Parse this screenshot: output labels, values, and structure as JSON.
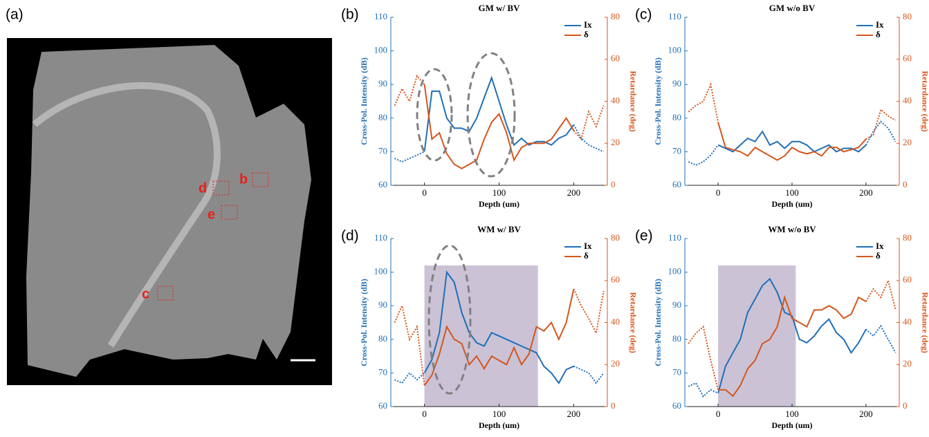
{
  "panel_labels": [
    "(a)",
    "(b)",
    "(c)",
    "(d)",
    "(e)"
  ],
  "image": {
    "region_labels": [
      "b",
      "c",
      "d",
      "e"
    ]
  },
  "chart_data": [
    {
      "type": "line",
      "title": "GM w/ BV",
      "xlabel": "Depth (um)",
      "ylabel": "Cross-Pol. Intensity (dB)",
      "y2label": "Retardance (deg)",
      "x": [
        -40,
        -30,
        -20,
        -10,
        0,
        10,
        20,
        30,
        40,
        50,
        60,
        70,
        80,
        90,
        100,
        110,
        120,
        130,
        140,
        150,
        160,
        170,
        180,
        190,
        200,
        210,
        220,
        230,
        240
      ],
      "xlim": [
        -45,
        245
      ],
      "xticks": [
        0,
        100,
        200
      ],
      "ylim": [
        60,
        110
      ],
      "yticks": [
        60,
        70,
        80,
        90,
        100,
        110
      ],
      "y2lim": [
        0,
        80
      ],
      "y2ticks": [
        0,
        20,
        40,
        60,
        80
      ],
      "solid_xlim": [
        0,
        200
      ],
      "legend": "upper right",
      "series": [
        {
          "name": "Ix",
          "color": "#1f6fb8",
          "axis": "y",
          "values": [
            68,
            67,
            68,
            69,
            70,
            88,
            88,
            80,
            77,
            77,
            76,
            80,
            86,
            92,
            85,
            78,
            72,
            74,
            72,
            73,
            73,
            72,
            74,
            75,
            78,
            74,
            72,
            71,
            70
          ]
        },
        {
          "name": "δ",
          "color": "#d4561c",
          "axis": "y2",
          "values": [
            38,
            46,
            40,
            52,
            48,
            22,
            25,
            15,
            10,
            8,
            10,
            12,
            22,
            30,
            34,
            25,
            12,
            18,
            20,
            20,
            20,
            22,
            27,
            32,
            26,
            22,
            35,
            28,
            38
          ]
        }
      ]
    },
    {
      "type": "line",
      "title": "GM w/o BV",
      "xlabel": "Depth (um)",
      "ylabel": "Cross-Pol. Intensity (dB)",
      "y2label": "Retardance (deg)",
      "x": [
        -40,
        -30,
        -20,
        -10,
        0,
        10,
        20,
        30,
        40,
        50,
        60,
        70,
        80,
        90,
        100,
        110,
        120,
        130,
        140,
        150,
        160,
        170,
        180,
        190,
        200,
        210,
        220,
        230,
        240
      ],
      "xlim": [
        -45,
        245
      ],
      "xticks": [
        0,
        100,
        200
      ],
      "ylim": [
        60,
        110
      ],
      "yticks": [
        60,
        70,
        80,
        90,
        100,
        110
      ],
      "y2lim": [
        0,
        80
      ],
      "y2ticks": [
        0,
        20,
        40,
        60,
        80
      ],
      "solid_xlim": [
        0,
        200
      ],
      "legend": "upper right",
      "series": [
        {
          "name": "Ix",
          "color": "#1f6fb8",
          "axis": "y",
          "values": [
            67,
            66,
            67,
            69,
            72,
            71,
            70,
            72,
            74,
            73,
            76,
            72,
            73,
            71,
            73,
            73,
            72,
            70,
            71,
            72,
            70,
            71,
            71,
            70,
            72,
            76,
            79,
            77,
            73
          ]
        },
        {
          "name": "δ",
          "color": "#d4561c",
          "axis": "y2",
          "values": [
            35,
            38,
            40,
            48,
            30,
            18,
            17,
            16,
            14,
            18,
            16,
            14,
            12,
            14,
            18,
            16,
            15,
            16,
            14,
            18,
            18,
            16,
            17,
            18,
            22,
            24,
            36,
            33,
            31
          ]
        }
      ]
    },
    {
      "type": "line",
      "title": "WM w/ BV",
      "xlabel": "Depth (um)",
      "ylabel": "Cross-Pol. Intensity (dB)",
      "y2label": "Retardance (deg)",
      "x": [
        -40,
        -30,
        -20,
        -10,
        0,
        10,
        20,
        30,
        40,
        50,
        60,
        70,
        80,
        90,
        100,
        110,
        120,
        130,
        140,
        150,
        160,
        170,
        180,
        190,
        200,
        210,
        220,
        230,
        240
      ],
      "xlim": [
        -45,
        245
      ],
      "xticks": [
        0,
        100,
        200
      ],
      "ylim": [
        60,
        110
      ],
      "yticks": [
        60,
        70,
        80,
        90,
        100,
        110
      ],
      "y2lim": [
        0,
        80
      ],
      "y2ticks": [
        0,
        20,
        40,
        60,
        80
      ],
      "solid_xlim": [
        0,
        200
      ],
      "legend": "upper right",
      "shaded_region": {
        "x": [
          0,
          152
        ],
        "y": [
          60,
          102
        ],
        "color": "#cbc2d6"
      },
      "series": [
        {
          "name": "Ix",
          "color": "#1f6fb8",
          "axis": "y",
          "values": [
            68,
            67,
            70,
            68,
            70,
            74,
            82,
            100,
            97,
            88,
            82,
            79,
            78,
            82,
            81,
            80,
            79,
            78,
            77,
            76,
            72,
            70,
            67,
            71,
            72,
            71,
            70,
            67,
            70
          ]
        },
        {
          "name": "δ",
          "color": "#d4561c",
          "axis": "y2",
          "values": [
            40,
            48,
            32,
            38,
            10,
            15,
            25,
            38,
            32,
            30,
            20,
            24,
            18,
            24,
            22,
            20,
            28,
            20,
            25,
            38,
            36,
            40,
            32,
            40,
            56,
            48,
            42,
            35,
            55
          ]
        }
      ]
    },
    {
      "type": "line",
      "title": "WM w/o BV",
      "xlabel": "Depth (um)",
      "ylabel": "Cross-Pol. Intensity (dB)",
      "y2label": "Retardance (deg)",
      "x": [
        -40,
        -30,
        -20,
        -10,
        0,
        10,
        20,
        30,
        40,
        50,
        60,
        70,
        80,
        90,
        100,
        110,
        120,
        130,
        140,
        150,
        160,
        170,
        180,
        190,
        200,
        210,
        220,
        230,
        240
      ],
      "xlim": [
        -45,
        245
      ],
      "xticks": [
        0,
        100,
        200
      ],
      "ylim": [
        60,
        110
      ],
      "yticks": [
        60,
        70,
        80,
        90,
        100,
        110
      ],
      "y2lim": [
        0,
        80
      ],
      "y2ticks": [
        0,
        20,
        40,
        60,
        80
      ],
      "solid_xlim": [
        0,
        200
      ],
      "legend": "upper right",
      "shaded_region": {
        "x": [
          0,
          105
        ],
        "y": [
          60,
          102
        ],
        "color": "#cbc2d6"
      },
      "series": [
        {
          "name": "Ix",
          "color": "#1f6fb8",
          "axis": "y",
          "values": [
            66,
            67,
            63,
            65,
            64,
            72,
            76,
            80,
            88,
            92,
            96,
            98,
            94,
            88,
            87,
            80,
            79,
            81,
            84,
            86,
            82,
            80,
            76,
            79,
            83,
            81,
            84,
            80,
            76
          ]
        },
        {
          "name": "δ",
          "color": "#d4561c",
          "axis": "y2",
          "values": [
            30,
            35,
            38,
            22,
            8,
            8,
            5,
            10,
            18,
            22,
            30,
            32,
            38,
            52,
            42,
            40,
            38,
            46,
            46,
            48,
            46,
            42,
            44,
            52,
            50,
            56,
            52,
            60,
            46
          ]
        }
      ]
    }
  ]
}
